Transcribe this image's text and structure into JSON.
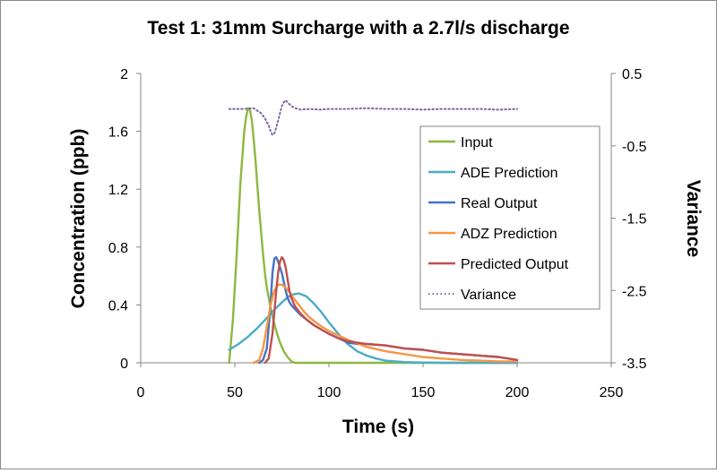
{
  "chart_data": {
    "type": "line",
    "title": "Test 1: 31mm Surcharge with a 2.7l/s discharge",
    "xlabel": "Time (s)",
    "ylabel": "Concentration (ppb)",
    "y2label": "Variance",
    "xlim": [
      0,
      250
    ],
    "ylim": [
      0,
      2
    ],
    "y2lim": [
      -3.5,
      0.5
    ],
    "x_ticks": [
      "0",
      "50",
      "100",
      "150",
      "200",
      "250"
    ],
    "y_ticks": [
      "0",
      "0.4",
      "0.8",
      "1.2",
      "1.6",
      "2"
    ],
    "y2_ticks": [
      "-3.5",
      "-2.5",
      "-1.5",
      "-0.5",
      "0.5"
    ],
    "grid": false,
    "legend_position": "right",
    "colors": {
      "Input": "#8DB83F",
      "ADE Prediction": "#4BACC6",
      "Real Output": "#4572C4",
      "ADZ Prediction": "#F79646",
      "Predicted Output": "#C0504D",
      "Variance": "#8064A2"
    },
    "series": [
      {
        "name": "Input",
        "axis": "left",
        "style": "solid",
        "x": [
          47,
          49,
          51,
          53,
          55,
          56,
          57,
          58,
          59,
          60,
          61,
          62,
          63,
          64,
          65,
          66,
          67,
          68,
          69,
          70,
          72,
          74,
          76,
          78,
          80,
          82,
          200
        ],
        "y": [
          0,
          0.3,
          0.75,
          1.25,
          1.6,
          1.7,
          1.76,
          1.75,
          1.68,
          1.55,
          1.4,
          1.22,
          1.05,
          0.9,
          0.75,
          0.62,
          0.52,
          0.45,
          0.38,
          0.32,
          0.22,
          0.14,
          0.08,
          0.04,
          0.01,
          0,
          0
        ]
      },
      {
        "name": "ADE Prediction",
        "axis": "left",
        "style": "solid",
        "x": [
          47,
          52,
          57,
          62,
          67,
          72,
          76,
          80,
          84,
          88,
          92,
          96,
          100,
          105,
          110,
          115,
          120,
          125,
          130,
          140,
          150,
          160,
          170,
          180,
          190,
          200
        ],
        "y": [
          0.09,
          0.13,
          0.18,
          0.24,
          0.31,
          0.38,
          0.43,
          0.47,
          0.48,
          0.46,
          0.41,
          0.35,
          0.28,
          0.2,
          0.13,
          0.08,
          0.05,
          0.03,
          0.015,
          0.005,
          0.002,
          0,
          0,
          0,
          0,
          0
        ]
      },
      {
        "name": "Real Output",
        "axis": "left",
        "style": "solid",
        "x": [
          63,
          65,
          67,
          69,
          70,
          71,
          72,
          73,
          74,
          75,
          76,
          77,
          78,
          79,
          80,
          82,
          85,
          88,
          92,
          96,
          100,
          105,
          110,
          115,
          120,
          130,
          140,
          150,
          160,
          170,
          180,
          190,
          200
        ],
        "y": [
          0,
          0.02,
          0.1,
          0.4,
          0.62,
          0.72,
          0.73,
          0.7,
          0.66,
          0.62,
          0.56,
          0.5,
          0.45,
          0.42,
          0.4,
          0.37,
          0.33,
          0.3,
          0.26,
          0.23,
          0.2,
          0.17,
          0.14,
          0.13,
          0.13,
          0.12,
          0.1,
          0.09,
          0.07,
          0.06,
          0.05,
          0.04,
          0.02
        ]
      },
      {
        "name": "ADZ Prediction",
        "axis": "left",
        "style": "solid",
        "x": [
          60,
          63,
          65,
          67,
          69,
          71,
          73,
          75,
          77,
          79,
          81,
          84,
          87,
          90,
          95,
          100,
          110,
          120,
          130,
          140,
          150,
          160,
          170,
          180,
          190,
          200
        ],
        "y": [
          0,
          0.02,
          0.1,
          0.25,
          0.4,
          0.5,
          0.54,
          0.54,
          0.52,
          0.49,
          0.45,
          0.4,
          0.35,
          0.31,
          0.26,
          0.22,
          0.16,
          0.11,
          0.08,
          0.06,
          0.04,
          0.03,
          0.02,
          0.015,
          0.01,
          0.01
        ]
      },
      {
        "name": "Predicted Output",
        "axis": "left",
        "style": "solid",
        "x": [
          66,
          68,
          70,
          71,
          72,
          73,
          74,
          75,
          76,
          77,
          78,
          79,
          80,
          82,
          85,
          88,
          92,
          96,
          100,
          105,
          110,
          115,
          120,
          130,
          140,
          150,
          160,
          170,
          180,
          190,
          200
        ],
        "y": [
          0,
          0.03,
          0.2,
          0.35,
          0.5,
          0.62,
          0.7,
          0.73,
          0.71,
          0.66,
          0.58,
          0.5,
          0.45,
          0.39,
          0.34,
          0.3,
          0.26,
          0.23,
          0.2,
          0.17,
          0.15,
          0.14,
          0.13,
          0.12,
          0.1,
          0.09,
          0.07,
          0.06,
          0.05,
          0.04,
          0.02
        ]
      },
      {
        "name": "Variance",
        "axis": "right",
        "style": "dotted",
        "x": [
          47,
          55,
          60,
          64,
          66,
          68,
          69,
          70,
          71,
          72,
          73,
          74,
          75,
          76,
          77,
          78,
          80,
          82,
          85,
          90,
          95,
          100,
          110,
          120,
          130,
          140,
          150,
          160,
          170,
          180,
          190,
          200
        ],
        "y": [
          0.01,
          0.01,
          0.02,
          -0.05,
          -0.12,
          -0.22,
          -0.3,
          -0.35,
          -0.33,
          -0.25,
          -0.15,
          -0.05,
          0.05,
          0.1,
          0.13,
          0.1,
          0.05,
          0.02,
          0.0,
          0.01,
          0.0,
          0.01,
          0.01,
          0.02,
          0.01,
          0.01,
          0.0,
          0.01,
          0.01,
          0.01,
          0.0,
          0.01
        ]
      }
    ]
  }
}
